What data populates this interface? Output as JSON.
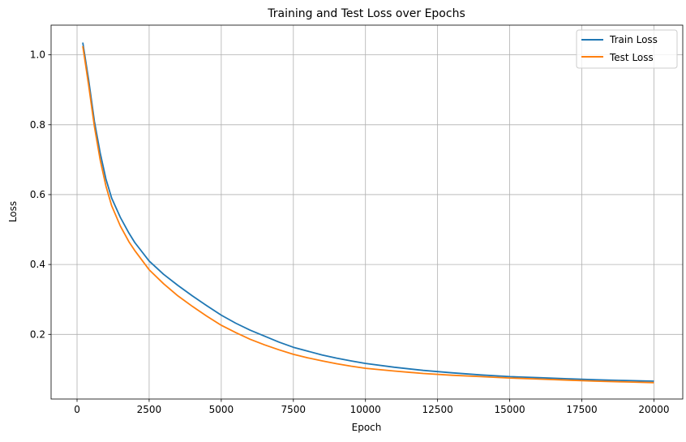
{
  "chart_data": {
    "type": "line",
    "title": "Training and Test Loss over Epochs",
    "xlabel": "Epoch",
    "ylabel": "Loss",
    "xlim": [
      -900,
      21000
    ],
    "ylim": [
      0.015,
      1.085
    ],
    "xticks": [
      0,
      2500,
      5000,
      7500,
      10000,
      12500,
      15000,
      17500,
      20000
    ],
    "xtick_labels": [
      "0",
      "2500",
      "5000",
      "7500",
      "10000",
      "12500",
      "15000",
      "17500",
      "20000"
    ],
    "yticks": [
      0.2,
      0.4,
      0.6,
      0.8,
      1.0
    ],
    "ytick_labels": [
      "0.2",
      "0.4",
      "0.6",
      "0.8",
      "1.0"
    ],
    "grid": true,
    "legend_position": "top-right",
    "x": [
      200,
      400,
      600,
      800,
      1000,
      1200,
      1500,
      1800,
      2000,
      2500,
      3000,
      3500,
      4000,
      4500,
      5000,
      5500,
      6000,
      6500,
      7000,
      7500,
      8000,
      8500,
      9000,
      9500,
      10000,
      11000,
      12000,
      13000,
      14000,
      15000,
      16000,
      17000,
      18000,
      19000,
      20000
    ],
    "series": [
      {
        "name": "Train Loss",
        "color": "#1f77b4",
        "values": [
          1.035,
          0.93,
          0.81,
          0.72,
          0.645,
          0.59,
          0.535,
          0.49,
          0.463,
          0.41,
          0.372,
          0.34,
          0.31,
          0.282,
          0.255,
          0.232,
          0.212,
          0.195,
          0.178,
          0.163,
          0.152,
          0.141,
          0.132,
          0.124,
          0.117,
          0.106,
          0.097,
          0.09,
          0.084,
          0.079,
          0.076,
          0.073,
          0.07,
          0.068,
          0.066
        ]
      },
      {
        "name": "Test Loss",
        "color": "#ff7f0e",
        "values": [
          1.025,
          0.915,
          0.795,
          0.7,
          0.625,
          0.568,
          0.51,
          0.465,
          0.44,
          0.385,
          0.345,
          0.31,
          0.28,
          0.252,
          0.226,
          0.205,
          0.186,
          0.17,
          0.156,
          0.143,
          0.133,
          0.124,
          0.116,
          0.109,
          0.103,
          0.095,
          0.088,
          0.083,
          0.079,
          0.075,
          0.072,
          0.069,
          0.066,
          0.064,
          0.062
        ]
      }
    ]
  }
}
